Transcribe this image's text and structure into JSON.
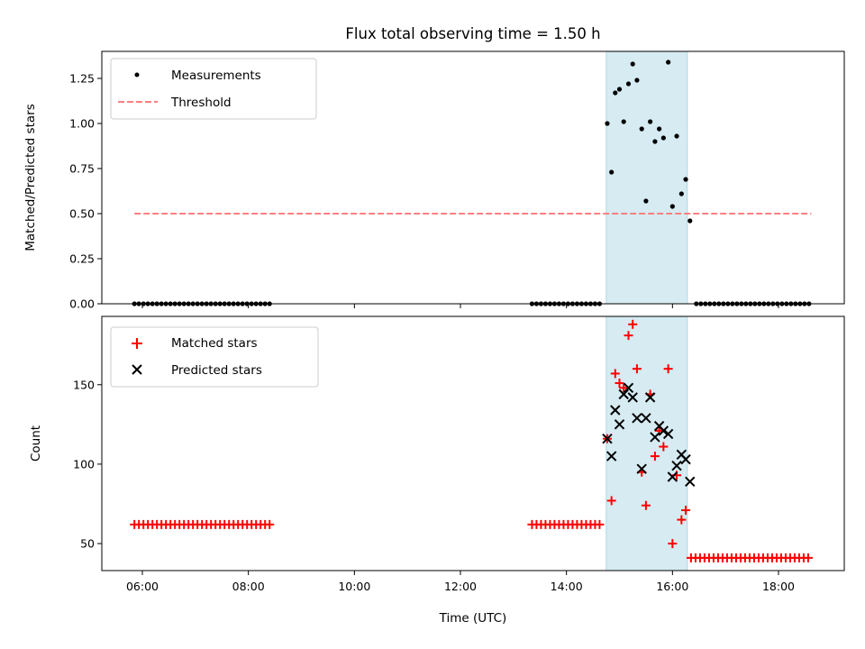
{
  "chart_data": {
    "type": "scatter",
    "title": "Flux total observing time = 1.50 h",
    "xlabel": "Time (UTC)",
    "xticks": [
      "06:00",
      "08:00",
      "10:00",
      "12:00",
      "14:00",
      "16:00",
      "18:00"
    ],
    "highlight_span": {
      "x": [
        14.75,
        16.28
      ],
      "color": "#add8e6"
    },
    "colors": {
      "measurements": "#000000",
      "threshold": "#ff8080",
      "matched": "#ff0000",
      "predicted": "#000000"
    },
    "panels": [
      {
        "ylabel": "Matched/Predicted stars",
        "ylim": [
          0,
          1.4
        ],
        "yticks": [
          "0.00",
          "0.25",
          "0.50",
          "0.75",
          "1.00",
          "1.25"
        ],
        "legend": [
          "Measurements",
          "Threshold"
        ],
        "legend_position": "upper left",
        "series": [
          {
            "name": "Measurements",
            "marker": "dot",
            "segments": [
              {
                "x_start": 5.85,
                "x_end": 8.48,
                "step": 0.085,
                "y": 0
              },
              {
                "x_start": 13.35,
                "x_end": 14.7,
                "step": 0.085,
                "y": 0
              },
              {
                "x_start": 16.45,
                "x_end": 18.62,
                "step": 0.085,
                "y": 0
              }
            ],
            "points": [
              {
                "x": 14.77,
                "y": 1.0
              },
              {
                "x": 14.85,
                "y": 0.73
              },
              {
                "x": 14.92,
                "y": 1.17
              },
              {
                "x": 15.0,
                "y": 1.19
              },
              {
                "x": 15.08,
                "y": 1.01
              },
              {
                "x": 15.17,
                "y": 1.22
              },
              {
                "x": 15.25,
                "y": 1.33
              },
              {
                "x": 15.33,
                "y": 1.24
              },
              {
                "x": 15.42,
                "y": 0.97
              },
              {
                "x": 15.5,
                "y": 0.57
              },
              {
                "x": 15.58,
                "y": 1.01
              },
              {
                "x": 15.67,
                "y": 0.9
              },
              {
                "x": 15.75,
                "y": 0.97
              },
              {
                "x": 15.83,
                "y": 0.92
              },
              {
                "x": 15.92,
                "y": 1.34
              },
              {
                "x": 16.0,
                "y": 0.54
              },
              {
                "x": 16.08,
                "y": 0.93
              },
              {
                "x": 16.17,
                "y": 0.61
              },
              {
                "x": 16.25,
                "y": 0.69
              },
              {
                "x": 16.33,
                "y": 0.46
              }
            ]
          },
          {
            "name": "Threshold",
            "style": "dashed",
            "x": [
              5.85,
              18.62
            ],
            "y": [
              0.5,
              0.5
            ]
          }
        ]
      },
      {
        "ylabel": "Count",
        "ylim": [
          33,
          193
        ],
        "yticks": [
          "50",
          "100",
          "150"
        ],
        "legend": [
          "Matched stars",
          "Predicted stars"
        ],
        "legend_position": "upper left",
        "series": [
          {
            "name": "Matched stars",
            "marker": "plus",
            "segments": [
              {
                "x_start": 5.85,
                "x_end": 8.48,
                "step": 0.085,
                "y": 62
              },
              {
                "x_start": 13.35,
                "x_end": 14.7,
                "step": 0.085,
                "y": 62
              },
              {
                "x_start": 16.35,
                "x_end": 18.62,
                "step": 0.085,
                "y": 41
              }
            ],
            "points": [
              {
                "x": 14.77,
                "y": 116
              },
              {
                "x": 14.85,
                "y": 77
              },
              {
                "x": 14.92,
                "y": 157
              },
              {
                "x": 15.0,
                "y": 151
              },
              {
                "x": 15.08,
                "y": 148
              },
              {
                "x": 15.17,
                "y": 181
              },
              {
                "x": 15.25,
                "y": 188
              },
              {
                "x": 15.33,
                "y": 160
              },
              {
                "x": 15.42,
                "y": 95
              },
              {
                "x": 15.5,
                "y": 74
              },
              {
                "x": 15.58,
                "y": 144
              },
              {
                "x": 15.67,
                "y": 105
              },
              {
                "x": 15.75,
                "y": 121
              },
              {
                "x": 15.83,
                "y": 111
              },
              {
                "x": 15.92,
                "y": 160
              },
              {
                "x": 16.0,
                "y": 50
              },
              {
                "x": 16.08,
                "y": 93
              },
              {
                "x": 16.17,
                "y": 65
              },
              {
                "x": 16.25,
                "y": 71
              }
            ]
          },
          {
            "name": "Predicted stars",
            "marker": "x",
            "points": [
              {
                "x": 14.77,
                "y": 116
              },
              {
                "x": 14.85,
                "y": 105
              },
              {
                "x": 14.92,
                "y": 134
              },
              {
                "x": 15.0,
                "y": 125
              },
              {
                "x": 15.08,
                "y": 144
              },
              {
                "x": 15.17,
                "y": 148
              },
              {
                "x": 15.25,
                "y": 142
              },
              {
                "x": 15.33,
                "y": 129
              },
              {
                "x": 15.42,
                "y": 97
              },
              {
                "x": 15.5,
                "y": 129
              },
              {
                "x": 15.58,
                "y": 142
              },
              {
                "x": 15.67,
                "y": 117
              },
              {
                "x": 15.75,
                "y": 124
              },
              {
                "x": 15.83,
                "y": 121
              },
              {
                "x": 15.92,
                "y": 119
              },
              {
                "x": 16.0,
                "y": 92
              },
              {
                "x": 16.08,
                "y": 99
              },
              {
                "x": 16.17,
                "y": 106
              },
              {
                "x": 16.25,
                "y": 103
              },
              {
                "x": 16.33,
                "y": 89
              }
            ]
          }
        ]
      }
    ]
  }
}
